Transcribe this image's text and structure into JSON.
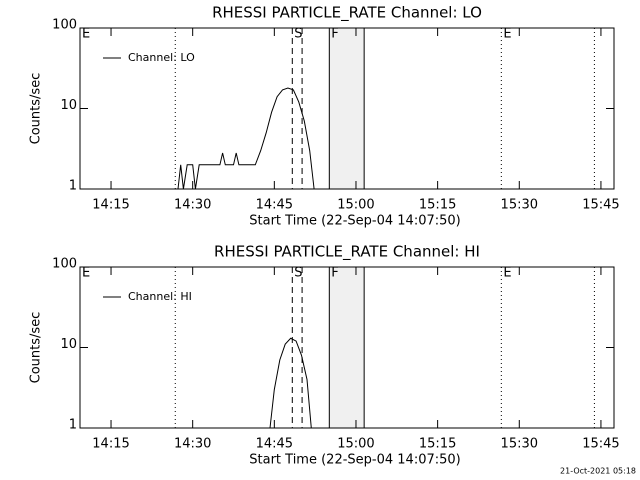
{
  "chart_data": [
    {
      "type": "line",
      "title": "RHESSI PARTICLE_RATE Channel: LO",
      "x_label": "Start Time (22-Sep-04 14:07:50)",
      "y_label": "Counts/sec",
      "log_y": true,
      "xlim": [
        9.3,
        107.4
      ],
      "ylim": [
        1,
        100
      ],
      "yticks": [
        1,
        10,
        100
      ],
      "xticks": [
        {
          "value": 15,
          "label": "14:15"
        },
        {
          "value": 30,
          "label": "14:30"
        },
        {
          "value": 45,
          "label": "14:45"
        },
        {
          "value": 60,
          "label": "15:00"
        },
        {
          "value": 75,
          "label": "15:15"
        },
        {
          "value": 90,
          "label": "15:30"
        },
        {
          "value": 105,
          "label": "15:45"
        }
      ],
      "shade": [
        55.1,
        61.5
      ],
      "events": [
        {
          "x": 9.3,
          "style": "dotted",
          "label": "E"
        },
        {
          "x": 26.8,
          "style": "dotted"
        },
        {
          "x": 48.3,
          "style": "dashed",
          "label": "S"
        },
        {
          "x": 50.1,
          "style": "dashed"
        },
        {
          "x": 55.1,
          "style": "solid",
          "label": "F"
        },
        {
          "x": 61.5,
          "style": "solid"
        },
        {
          "x": 86.7,
          "style": "dotted",
          "label": "E"
        },
        {
          "x": 103.8,
          "style": "dotted"
        }
      ],
      "series": [
        {
          "name": "Channel: LO",
          "color": "#000000",
          "x": [
            27.3,
            27.8,
            28.3,
            29.0,
            30.0,
            30.5,
            31.2,
            35.0,
            35.5,
            36.0,
            37.5,
            38.0,
            38.5,
            40.5,
            41.5,
            42.5,
            43.5,
            44.5,
            45.5,
            46.5,
            47.5,
            48.5,
            49.5,
            50.5,
            51.5,
            52.3
          ],
          "values": [
            1,
            2,
            1,
            2,
            2,
            1,
            2,
            2,
            2.8,
            2,
            2,
            2.8,
            2,
            2,
            2,
            3,
            5,
            9,
            14,
            17,
            18,
            17,
            12,
            7,
            3,
            1
          ]
        }
      ]
    },
    {
      "type": "line",
      "title": "RHESSI PARTICLE_RATE Channel: HI",
      "x_label": "Start Time (22-Sep-04 14:07:50)",
      "y_label": "Counts/sec",
      "log_y": true,
      "xlim": [
        9.3,
        107.4
      ],
      "ylim": [
        1,
        100
      ],
      "yticks": [
        1,
        10,
        100
      ],
      "xticks": [
        {
          "value": 15,
          "label": "14:15"
        },
        {
          "value": 30,
          "label": "14:30"
        },
        {
          "value": 45,
          "label": "14:45"
        },
        {
          "value": 60,
          "label": "15:00"
        },
        {
          "value": 75,
          "label": "15:15"
        },
        {
          "value": 90,
          "label": "15:30"
        },
        {
          "value": 105,
          "label": "15:45"
        }
      ],
      "shade": [
        55.1,
        61.5
      ],
      "events": [
        {
          "x": 9.3,
          "style": "dotted",
          "label": "E"
        },
        {
          "x": 26.8,
          "style": "dotted"
        },
        {
          "x": 48.3,
          "style": "dashed",
          "label": "S"
        },
        {
          "x": 50.1,
          "style": "dashed"
        },
        {
          "x": 55.1,
          "style": "solid",
          "label": "F"
        },
        {
          "x": 61.5,
          "style": "solid"
        },
        {
          "x": 86.7,
          "style": "dotted",
          "label": "E"
        },
        {
          "x": 103.8,
          "style": "dotted"
        }
      ],
      "series": [
        {
          "name": "Channel: HI",
          "color": "#000000",
          "x": [
            44.2,
            45.0,
            46.0,
            47.0,
            48.0,
            49.0,
            50.0,
            51.0,
            51.8
          ],
          "values": [
            1,
            3,
            7,
            11,
            13,
            12,
            8,
            4,
            1
          ]
        }
      ]
    }
  ],
  "timestamp": "21-Oct-2021 05:18"
}
